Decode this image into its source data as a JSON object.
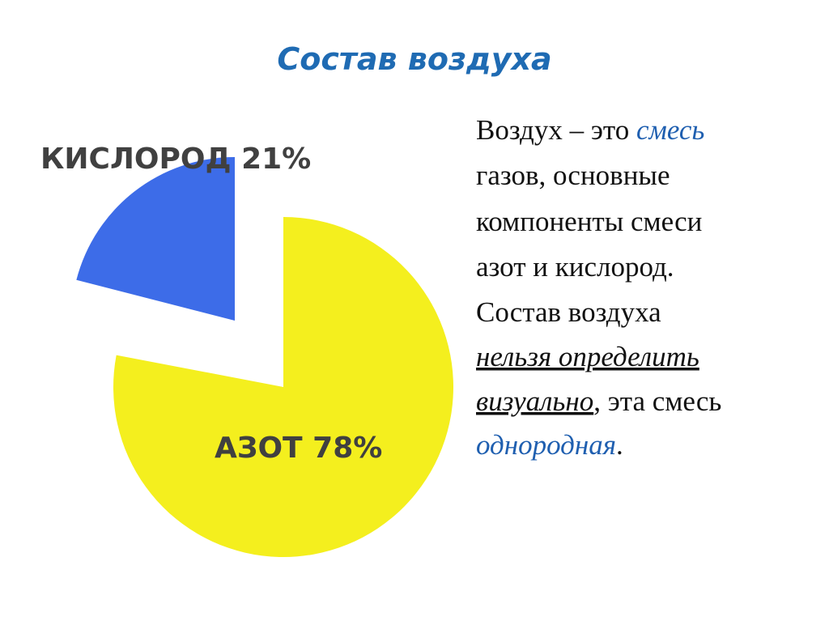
{
  "chart_data": {
    "type": "pie",
    "title": "Состав воздуха",
    "categories": [
      "АЗОТ",
      "КИСЛОРОД"
    ],
    "values": [
      78,
      21
    ],
    "value_labels": [
      "78%",
      "21%"
    ],
    "colors": [
      "#f4ef1e",
      "#3d6ce8"
    ]
  },
  "body": [
    [
      "Воздух – это ",
      "смесь"
    ],
    [
      "газов, основные"
    ],
    [
      "компоненты смеси"
    ],
    [
      "азот и кислород."
    ],
    [
      "Состав воздуха"
    ],
    [
      "нельзя определить"
    ],
    [
      "визуально",
      ", эта смесь"
    ],
    [
      "однородная",
      "."
    ]
  ]
}
